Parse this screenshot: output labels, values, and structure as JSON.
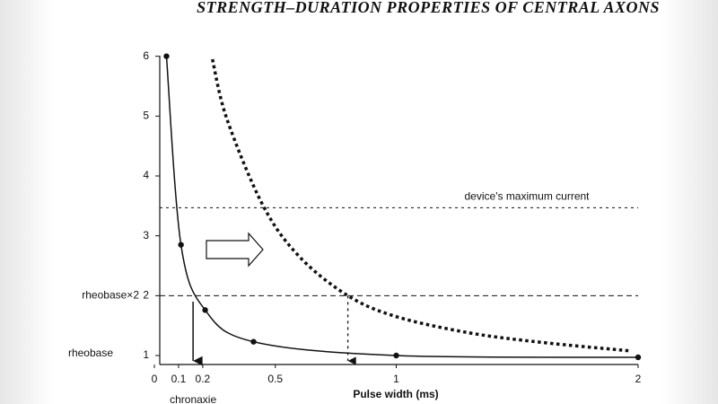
{
  "chart_data": {
    "type": "line",
    "title": "STRENGTH–DURATION PROPERTIES OF CENTRAL AXONS",
    "x_label": "Pulse width (ms)",
    "xlim": [
      0,
      2
    ],
    "xticks": [
      0,
      0.1,
      0.2,
      0.5,
      1,
      2
    ],
    "ylim": [
      0.85,
      6.1
    ],
    "yticks": [
      1,
      2,
      3,
      4,
      5,
      6
    ],
    "color": "#111111",
    "series": [
      {
        "style": "solid",
        "markers": true,
        "x": [
          0.05,
          0.11,
          0.21,
          0.41,
          1,
          2
        ],
        "values": [
          6,
          2.85,
          1.76,
          1.23,
          1.0,
          0.97
        ]
      },
      {
        "style": "dotted",
        "markers": false,
        "x": [
          0.24,
          0.3,
          0.45,
          0.6,
          0.8,
          1.0,
          1.3,
          1.6,
          1.96
        ],
        "values": [
          5.95,
          4.95,
          3.5,
          2.65,
          2.0,
          1.65,
          1.38,
          1.22,
          1.08
        ]
      }
    ],
    "reference_lines": [
      {
        "label": "device's maximum current",
        "value": 3.47,
        "style": "dotted"
      },
      {
        "label": "rheobase×2",
        "value": 2,
        "style": "dashed"
      }
    ],
    "annotations": [
      {
        "text": "rheobase",
        "y": 1
      },
      {
        "text": "chronaxie",
        "x": 0.16,
        "y_from": 1.9
      }
    ],
    "arrows": [
      {
        "x": 0.8,
        "y_from": 2.0,
        "style": "dotted"
      }
    ]
  }
}
